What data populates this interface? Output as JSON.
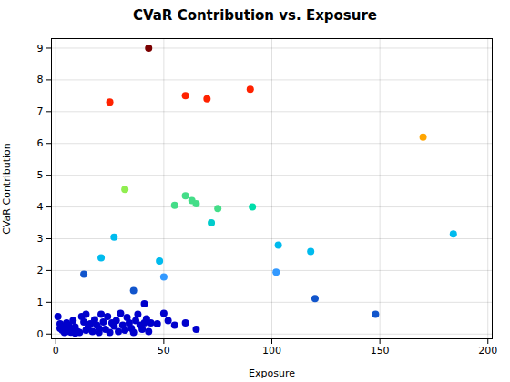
{
  "chart_data": {
    "type": "scatter",
    "title": "CVaR Contribution vs. Exposure",
    "xlabel": "Exposure",
    "ylabel": "CVaR Contribution",
    "xlim": [
      -2,
      202
    ],
    "ylim": [
      -0.15,
      9.3
    ],
    "xticks": [
      0,
      50,
      100,
      150,
      200
    ],
    "yticks": [
      0,
      1,
      2,
      3,
      4,
      5,
      6,
      7,
      8,
      9
    ],
    "grid": true,
    "x": [
      43,
      25,
      60,
      70,
      90,
      170,
      32,
      55,
      60,
      63,
      65,
      75,
      91,
      72,
      184,
      27,
      21,
      48,
      50,
      103,
      118,
      102,
      120,
      148,
      13,
      36,
      1,
      2,
      2,
      3,
      4,
      4,
      5,
      5,
      6,
      7,
      7,
      8,
      9,
      9,
      10,
      11,
      12,
      13,
      14,
      14,
      15,
      16,
      17,
      18,
      19,
      20,
      20,
      21,
      22,
      23,
      24,
      25,
      26,
      27,
      28,
      29,
      30,
      31,
      32,
      33,
      34,
      35,
      36,
      37,
      38,
      39,
      40,
      41,
      41,
      42,
      43,
      44,
      47,
      50,
      52,
      55,
      60,
      65
    ],
    "values": [
      9.0,
      7.3,
      7.5,
      7.4,
      7.7,
      6.2,
      4.55,
      4.05,
      4.35,
      4.2,
      4.1,
      3.95,
      4.0,
      3.5,
      3.15,
      3.05,
      2.4,
      2.3,
      1.8,
      2.8,
      2.6,
      1.95,
      1.12,
      0.62,
      1.88,
      1.37,
      0.55,
      0.32,
      0.18,
      0.12,
      0.05,
      0.25,
      0.35,
      0.08,
      0.28,
      0.15,
      0.06,
      0.42,
      0.22,
      0.03,
      0.08,
      0.05,
      0.55,
      0.38,
      0.12,
      0.62,
      0.22,
      0.32,
      0.08,
      0.45,
      0.28,
      0.18,
      0.05,
      0.62,
      0.38,
      0.15,
      0.55,
      0.05,
      0.35,
      0.25,
      0.42,
      0.08,
      0.65,
      0.28,
      0.12,
      0.52,
      0.35,
      0.18,
      0.05,
      0.42,
      0.62,
      0.28,
      0.15,
      0.35,
      0.95,
      0.48,
      0.08,
      0.35,
      0.32,
      0.65,
      0.42,
      0.28,
      0.35,
      0.15
    ],
    "colors": [
      "#7b0000",
      "#ff2200",
      "#ff2200",
      "#ff2200",
      "#ff2200",
      "#ffa500",
      "#90ee50",
      "#44dd88",
      "#44dd88",
      "#44dd88",
      "#44dd88",
      "#44dd88",
      "#00ddaa",
      "#00cccc",
      "#00bbee",
      "#00bbee",
      "#00bbee",
      "#00bbee",
      "#3399ff",
      "#00bbee",
      "#00bbee",
      "#3399ff",
      "#1155cc",
      "#1155cc",
      "#1155cc",
      "#1155cc",
      "#0000cc",
      "#0000cc",
      "#0000cc",
      "#0000cc",
      "#0000cc",
      "#0000cc",
      "#0000cc",
      "#0000cc",
      "#0000cc",
      "#0000cc",
      "#0000cc",
      "#0000cc",
      "#0000cc",
      "#0000cc",
      "#0000cc",
      "#0000cc",
      "#0000cc",
      "#0000cc",
      "#0000cc",
      "#0000cc",
      "#0000cc",
      "#0000cc",
      "#0000cc",
      "#0000cc",
      "#0000cc",
      "#0000cc",
      "#0000cc",
      "#0000cc",
      "#0000cc",
      "#0000cc",
      "#0000cc",
      "#0000cc",
      "#0000cc",
      "#0000cc",
      "#0000cc",
      "#0000cc",
      "#0000cc",
      "#0000cc",
      "#0000cc",
      "#0000cc",
      "#0000cc",
      "#0000cc",
      "#0000cc",
      "#0000cc",
      "#0000cc",
      "#0000cc",
      "#0000cc",
      "#0000cc",
      "#0000cc",
      "#0000cc",
      "#0000cc",
      "#0000cc",
      "#0000cc",
      "#0000cc",
      "#0000cc",
      "#0000cc",
      "#0000cc",
      "#0000cc"
    ]
  }
}
